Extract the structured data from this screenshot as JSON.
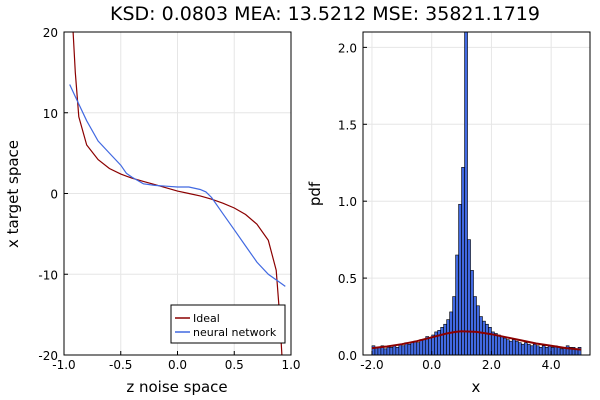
{
  "title": "KSD: 0.0803    MEA: 13.5212    MSE: 35821.1719",
  "colors": {
    "ideal": "#8b0000",
    "network": "#4169e1",
    "bar_fill": "#4169e1",
    "bar_edge": "#000000"
  },
  "chart_data": [
    {
      "type": "line",
      "xlabel": "z noise space",
      "ylabel": "x target space",
      "xlim": [
        -1.0,
        1.0
      ],
      "ylim": [
        -20,
        20
      ],
      "xticks": [
        "-1.0",
        "-0.5",
        "0.0",
        "0.5",
        "1.0"
      ],
      "yticks": [
        "-20",
        "-10",
        "0",
        "10",
        "20"
      ],
      "grid": true,
      "legend": "bottom-right",
      "series": [
        {
          "name": "Ideal",
          "x": [
            -0.92,
            -0.9,
            -0.87,
            -0.8,
            -0.7,
            -0.6,
            -0.5,
            -0.4,
            -0.3,
            -0.2,
            -0.1,
            0.0,
            0.1,
            0.2,
            0.3,
            0.4,
            0.5,
            0.6,
            0.7,
            0.8,
            0.87,
            0.9,
            0.92
          ],
          "y": [
            20,
            15,
            9.5,
            6,
            4.2,
            3.1,
            2.4,
            1.9,
            1.5,
            1.1,
            0.7,
            0.3,
            0,
            -0.3,
            -0.7,
            -1.2,
            -1.8,
            -2.6,
            -3.8,
            -5.8,
            -9.5,
            -15,
            -20
          ]
        },
        {
          "name": "neural network",
          "x": [
            -0.95,
            -0.9,
            -0.8,
            -0.7,
            -0.6,
            -0.5,
            -0.45,
            -0.4,
            -0.3,
            -0.2,
            -0.1,
            0.0,
            0.1,
            0.2,
            0.25,
            0.3,
            0.4,
            0.5,
            0.6,
            0.7,
            0.8,
            0.9,
            0.95
          ],
          "y": [
            13.5,
            12,
            9,
            6.5,
            5,
            3.5,
            2.5,
            2,
            1.2,
            1,
            0.9,
            0.8,
            0.8,
            0.5,
            0.2,
            -0.5,
            -2.5,
            -4.5,
            -6.5,
            -8.5,
            -10,
            -11,
            -11.5
          ]
        }
      ]
    },
    {
      "type": "bar",
      "xlabel": "x",
      "ylabel": "pdf",
      "xlim": [
        -2.3,
        5.3
      ],
      "ylim": [
        0,
        2.1
      ],
      "xticks": [
        "-2.0",
        "0.0",
        "2.0",
        "4.0"
      ],
      "yticks": [
        "0.0",
        "0.5",
        "1.0",
        "1.5",
        "2.0"
      ],
      "grid": true,
      "bin_width": 0.1,
      "bins_start": -2.0,
      "values": [
        0.06,
        0.05,
        0.05,
        0.06,
        0.04,
        0.05,
        0.05,
        0.06,
        0.05,
        0.07,
        0.06,
        0.08,
        0.07,
        0.08,
        0.09,
        0.08,
        0.1,
        0.1,
        0.12,
        0.11,
        0.13,
        0.15,
        0.16,
        0.18,
        0.2,
        0.23,
        0.28,
        0.38,
        0.65,
        0.98,
        1.22,
        2.1,
        0.75,
        0.55,
        0.38,
        0.32,
        0.25,
        0.22,
        0.2,
        0.18,
        0.15,
        0.14,
        0.13,
        0.12,
        0.11,
        0.1,
        0.09,
        0.1,
        0.09,
        0.08,
        0.07,
        0.08,
        0.07,
        0.06,
        0.07,
        0.06,
        0.05,
        0.06,
        0.05,
        0.06,
        0.05,
        0.06,
        0.05,
        0.04,
        0.05,
        0.06,
        0.05,
        0.05,
        0.04,
        0.05
      ],
      "curve": {
        "x": [
          -2.0,
          -1.5,
          -1.0,
          -0.5,
          0.0,
          0.5,
          0.8,
          1.0,
          1.3,
          1.5,
          2.0,
          2.5,
          3.0,
          3.5,
          4.0,
          4.5,
          5.0
        ],
        "y": [
          0.045,
          0.055,
          0.07,
          0.09,
          0.115,
          0.14,
          0.15,
          0.155,
          0.152,
          0.15,
          0.135,
          0.115,
          0.095,
          0.075,
          0.06,
          0.045,
          0.035
        ]
      }
    }
  ]
}
